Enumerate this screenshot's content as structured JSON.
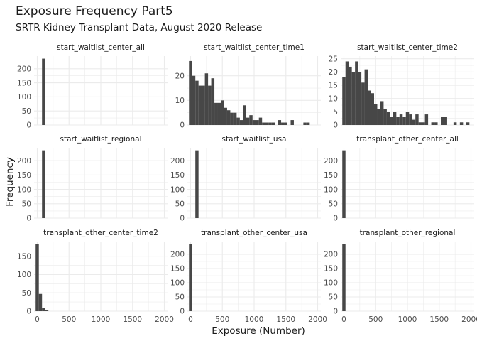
{
  "title": "Exposure Frequency Part5",
  "subtitle": "SRTR Kidney Transplant Data, August 2020 Release",
  "chart_data": {
    "type": "bar",
    "subtype": "faceted-histogram",
    "xlabel": "Exposure (Number)",
    "ylabel": "Frequency",
    "bar_color": "#474747",
    "grid": true,
    "x_range": [
      -50,
      2050
    ],
    "x_ticks": [
      0,
      500,
      1000,
      1500,
      2000
    ],
    "bin_width": 50,
    "panels": [
      {
        "name": "start_waitlist_center_all",
        "y_range": [
          0,
          245
        ],
        "y_ticks": [
          0,
          50,
          100,
          150,
          200
        ],
        "bins": [
          [
            100,
            236
          ]
        ]
      },
      {
        "name": "start_waitlist_center_time1",
        "y_range": [
          0,
          28
        ],
        "y_ticks": [
          0,
          10,
          20
        ],
        "bins": [
          [
            0,
            26
          ],
          [
            50,
            20
          ],
          [
            100,
            18
          ],
          [
            150,
            16
          ],
          [
            200,
            16
          ],
          [
            250,
            21
          ],
          [
            300,
            16
          ],
          [
            350,
            19
          ],
          [
            400,
            9
          ],
          [
            450,
            9
          ],
          [
            500,
            10
          ],
          [
            550,
            7
          ],
          [
            600,
            6
          ],
          [
            650,
            5
          ],
          [
            700,
            5
          ],
          [
            750,
            3
          ],
          [
            800,
            2
          ],
          [
            850,
            8
          ],
          [
            900,
            3
          ],
          [
            950,
            4
          ],
          [
            1000,
            2
          ],
          [
            1050,
            2
          ],
          [
            1100,
            3
          ],
          [
            1150,
            1
          ],
          [
            1200,
            1
          ],
          [
            1250,
            1
          ],
          [
            1300,
            1
          ],
          [
            1400,
            2
          ],
          [
            1450,
            1
          ],
          [
            1500,
            1
          ],
          [
            1600,
            2
          ],
          [
            1800,
            1
          ],
          [
            1850,
            1
          ]
        ]
      },
      {
        "name": "start_waitlist_center_time2",
        "y_range": [
          0,
          26
        ],
        "y_ticks": [
          0,
          5,
          10,
          15,
          20,
          25
        ],
        "bins": [
          [
            0,
            18
          ],
          [
            50,
            24
          ],
          [
            100,
            22
          ],
          [
            150,
            20
          ],
          [
            200,
            24
          ],
          [
            250,
            20
          ],
          [
            300,
            16
          ],
          [
            350,
            21
          ],
          [
            400,
            13
          ],
          [
            450,
            12
          ],
          [
            500,
            8
          ],
          [
            550,
            6
          ],
          [
            600,
            9
          ],
          [
            650,
            6
          ],
          [
            700,
            5
          ],
          [
            750,
            3
          ],
          [
            800,
            5
          ],
          [
            850,
            3
          ],
          [
            900,
            4
          ],
          [
            950,
            3
          ],
          [
            1000,
            5
          ],
          [
            1050,
            4
          ],
          [
            1100,
            2
          ],
          [
            1150,
            4
          ],
          [
            1200,
            1
          ],
          [
            1250,
            1
          ],
          [
            1300,
            4
          ],
          [
            1400,
            1
          ],
          [
            1450,
            1
          ],
          [
            1550,
            3
          ],
          [
            1600,
            3
          ],
          [
            1750,
            1
          ],
          [
            1850,
            1
          ],
          [
            1950,
            1
          ]
        ]
      },
      {
        "name": "start_waitlist_regional",
        "y_range": [
          0,
          245
        ],
        "y_ticks": [
          0,
          50,
          100,
          150,
          200
        ],
        "bins": [
          [
            100,
            236
          ]
        ]
      },
      {
        "name": "start_waitlist_usa",
        "y_range": [
          0,
          245
        ],
        "y_ticks": [
          0,
          50,
          100,
          150,
          200
        ],
        "bins": [
          [
            100,
            236
          ]
        ]
      },
      {
        "name": "transplant_other_center_all",
        "y_range": [
          0,
          245
        ],
        "y_ticks": [
          0,
          50,
          100,
          150,
          200
        ],
        "bins": [
          [
            0,
            236
          ]
        ]
      },
      {
        "name": "transplant_other_center_time2",
        "y_range": [
          0,
          190
        ],
        "y_ticks": [
          0,
          50,
          100,
          150
        ],
        "bins": [
          [
            0,
            183
          ],
          [
            50,
            47
          ],
          [
            100,
            8
          ],
          [
            150,
            2
          ]
        ]
      },
      {
        "name": "transplant_other_center_usa",
        "y_range": [
          0,
          245
        ],
        "y_ticks": [
          0,
          50,
          100,
          150,
          200
        ],
        "bins": [
          [
            0,
            236
          ]
        ]
      },
      {
        "name": "transplant_other_regional",
        "y_range": [
          0,
          245
        ],
        "y_ticks": [
          0,
          50,
          100,
          150,
          200
        ],
        "bins": [
          [
            0,
            236
          ]
        ]
      }
    ]
  }
}
